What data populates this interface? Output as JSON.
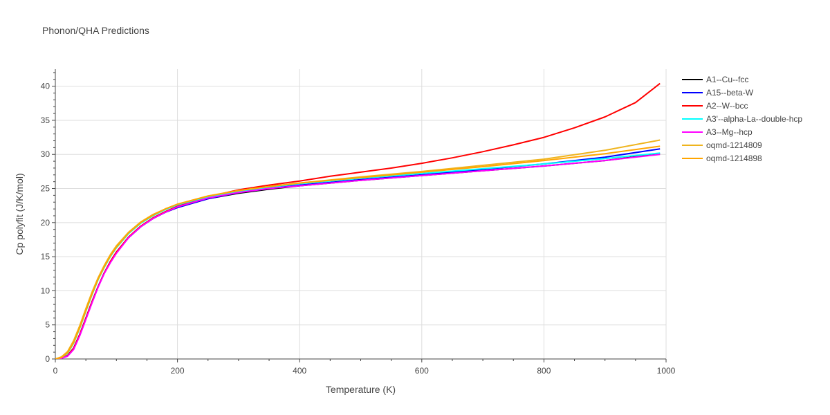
{
  "chart_data": {
    "type": "line",
    "title": "Phonon/QHA Predictions",
    "xlabel": "Temperature (K)",
    "ylabel": "Cp polyfit (J/K/mol)",
    "xlim": [
      0,
      1000
    ],
    "ylim": [
      0,
      42.5
    ],
    "xticks": [
      0,
      200,
      400,
      600,
      800,
      1000
    ],
    "yticks": [
      0,
      5,
      10,
      15,
      20,
      25,
      30,
      35,
      40
    ],
    "grid": true,
    "legend_position": "top-right",
    "series": [
      {
        "name": "A1--Cu--fcc",
        "color": "#000000",
        "x": [
          0,
          10,
          20,
          30,
          40,
          50,
          60,
          70,
          80,
          90,
          100,
          120,
          140,
          160,
          180,
          200,
          250,
          300,
          350,
          400,
          500,
          600,
          700,
          800,
          900,
          990
        ],
        "y": [
          0,
          0.1,
          0.5,
          1.6,
          3.6,
          6.0,
          8.4,
          10.6,
          12.6,
          14.2,
          15.6,
          17.8,
          19.4,
          20.6,
          21.5,
          22.2,
          23.5,
          24.3,
          24.9,
          25.4,
          26.2,
          26.9,
          27.6,
          28.3,
          29.1,
          30.1
        ]
      },
      {
        "name": "A15--beta-W",
        "color": "#0000ff",
        "x": [
          0,
          10,
          20,
          30,
          40,
          50,
          60,
          70,
          80,
          90,
          100,
          120,
          140,
          160,
          180,
          200,
          250,
          300,
          350,
          400,
          500,
          600,
          700,
          800,
          900,
          990
        ],
        "y": [
          0,
          0.1,
          0.5,
          1.6,
          3.6,
          6.0,
          8.4,
          10.6,
          12.6,
          14.2,
          15.6,
          17.8,
          19.4,
          20.6,
          21.5,
          22.2,
          23.5,
          24.4,
          25.0,
          25.5,
          26.3,
          27.0,
          27.8,
          28.6,
          29.6,
          30.8
        ]
      },
      {
        "name": "A2--W--bcc",
        "color": "#ff0000",
        "x": [
          0,
          10,
          20,
          30,
          40,
          50,
          60,
          70,
          80,
          90,
          100,
          120,
          140,
          160,
          180,
          200,
          250,
          300,
          350,
          400,
          450,
          500,
          550,
          600,
          650,
          700,
          750,
          800,
          850,
          900,
          950,
          990
        ],
        "y": [
          0,
          0.1,
          0.5,
          1.6,
          3.6,
          6.0,
          8.4,
          10.6,
          12.6,
          14.3,
          15.7,
          17.9,
          19.5,
          20.7,
          21.6,
          22.4,
          23.8,
          24.8,
          25.5,
          26.1,
          26.8,
          27.4,
          28.0,
          28.7,
          29.5,
          30.4,
          31.4,
          32.5,
          33.9,
          35.5,
          37.6,
          40.4
        ]
      },
      {
        "name": "A3'--alpha-La--double-hcp",
        "color": "#00ffff",
        "x": [
          0,
          10,
          20,
          30,
          40,
          50,
          60,
          70,
          80,
          90,
          100,
          120,
          140,
          160,
          180,
          200,
          250,
          300,
          350,
          400,
          500,
          600,
          700,
          800,
          900,
          990
        ],
        "y": [
          0,
          0.2,
          0.8,
          2.3,
          4.5,
          7.0,
          9.4,
          11.6,
          13.4,
          15.0,
          16.3,
          18.4,
          19.9,
          21.0,
          21.9,
          22.6,
          23.8,
          24.6,
          25.2,
          25.7,
          26.5,
          27.2,
          27.9,
          28.6,
          29.4,
          30.2
        ]
      },
      {
        "name": "A3--Mg--hcp",
        "color": "#ff00ff",
        "x": [
          0,
          10,
          20,
          30,
          40,
          50,
          60,
          70,
          80,
          90,
          100,
          120,
          140,
          160,
          180,
          200,
          250,
          300,
          350,
          400,
          500,
          600,
          700,
          800,
          900,
          990
        ],
        "y": [
          0,
          0.1,
          0.4,
          1.4,
          3.4,
          5.8,
          8.2,
          10.5,
          12.5,
          14.1,
          15.5,
          17.8,
          19.4,
          20.6,
          21.5,
          22.3,
          23.6,
          24.4,
          25.0,
          25.4,
          26.2,
          26.9,
          27.6,
          28.3,
          29.1,
          30.0
        ]
      },
      {
        "name": "oqmd-1214809",
        "color": "#efb41d",
        "x": [
          0,
          10,
          20,
          30,
          40,
          50,
          60,
          70,
          80,
          90,
          100,
          120,
          140,
          160,
          180,
          200,
          250,
          300,
          350,
          400,
          500,
          600,
          700,
          800,
          900,
          990
        ],
        "y": [
          0,
          0.3,
          1.1,
          2.7,
          4.9,
          7.4,
          9.8,
          11.9,
          13.7,
          15.3,
          16.6,
          18.6,
          20.1,
          21.2,
          22.0,
          22.7,
          23.9,
          24.7,
          25.3,
          25.8,
          26.7,
          27.5,
          28.4,
          29.3,
          30.6,
          32.1
        ]
      },
      {
        "name": "oqmd-1214898",
        "color": "#ffa500",
        "x": [
          0,
          10,
          20,
          30,
          40,
          50,
          60,
          70,
          80,
          90,
          100,
          120,
          140,
          160,
          180,
          200,
          250,
          300,
          350,
          400,
          500,
          600,
          700,
          800,
          900,
          990
        ],
        "y": [
          0,
          0.2,
          0.9,
          2.4,
          4.6,
          7.1,
          9.5,
          11.7,
          13.5,
          15.1,
          16.4,
          18.5,
          20.0,
          21.1,
          22.0,
          22.7,
          23.9,
          24.7,
          25.3,
          25.8,
          26.6,
          27.4,
          28.2,
          29.1,
          30.1,
          31.2
        ]
      }
    ]
  }
}
